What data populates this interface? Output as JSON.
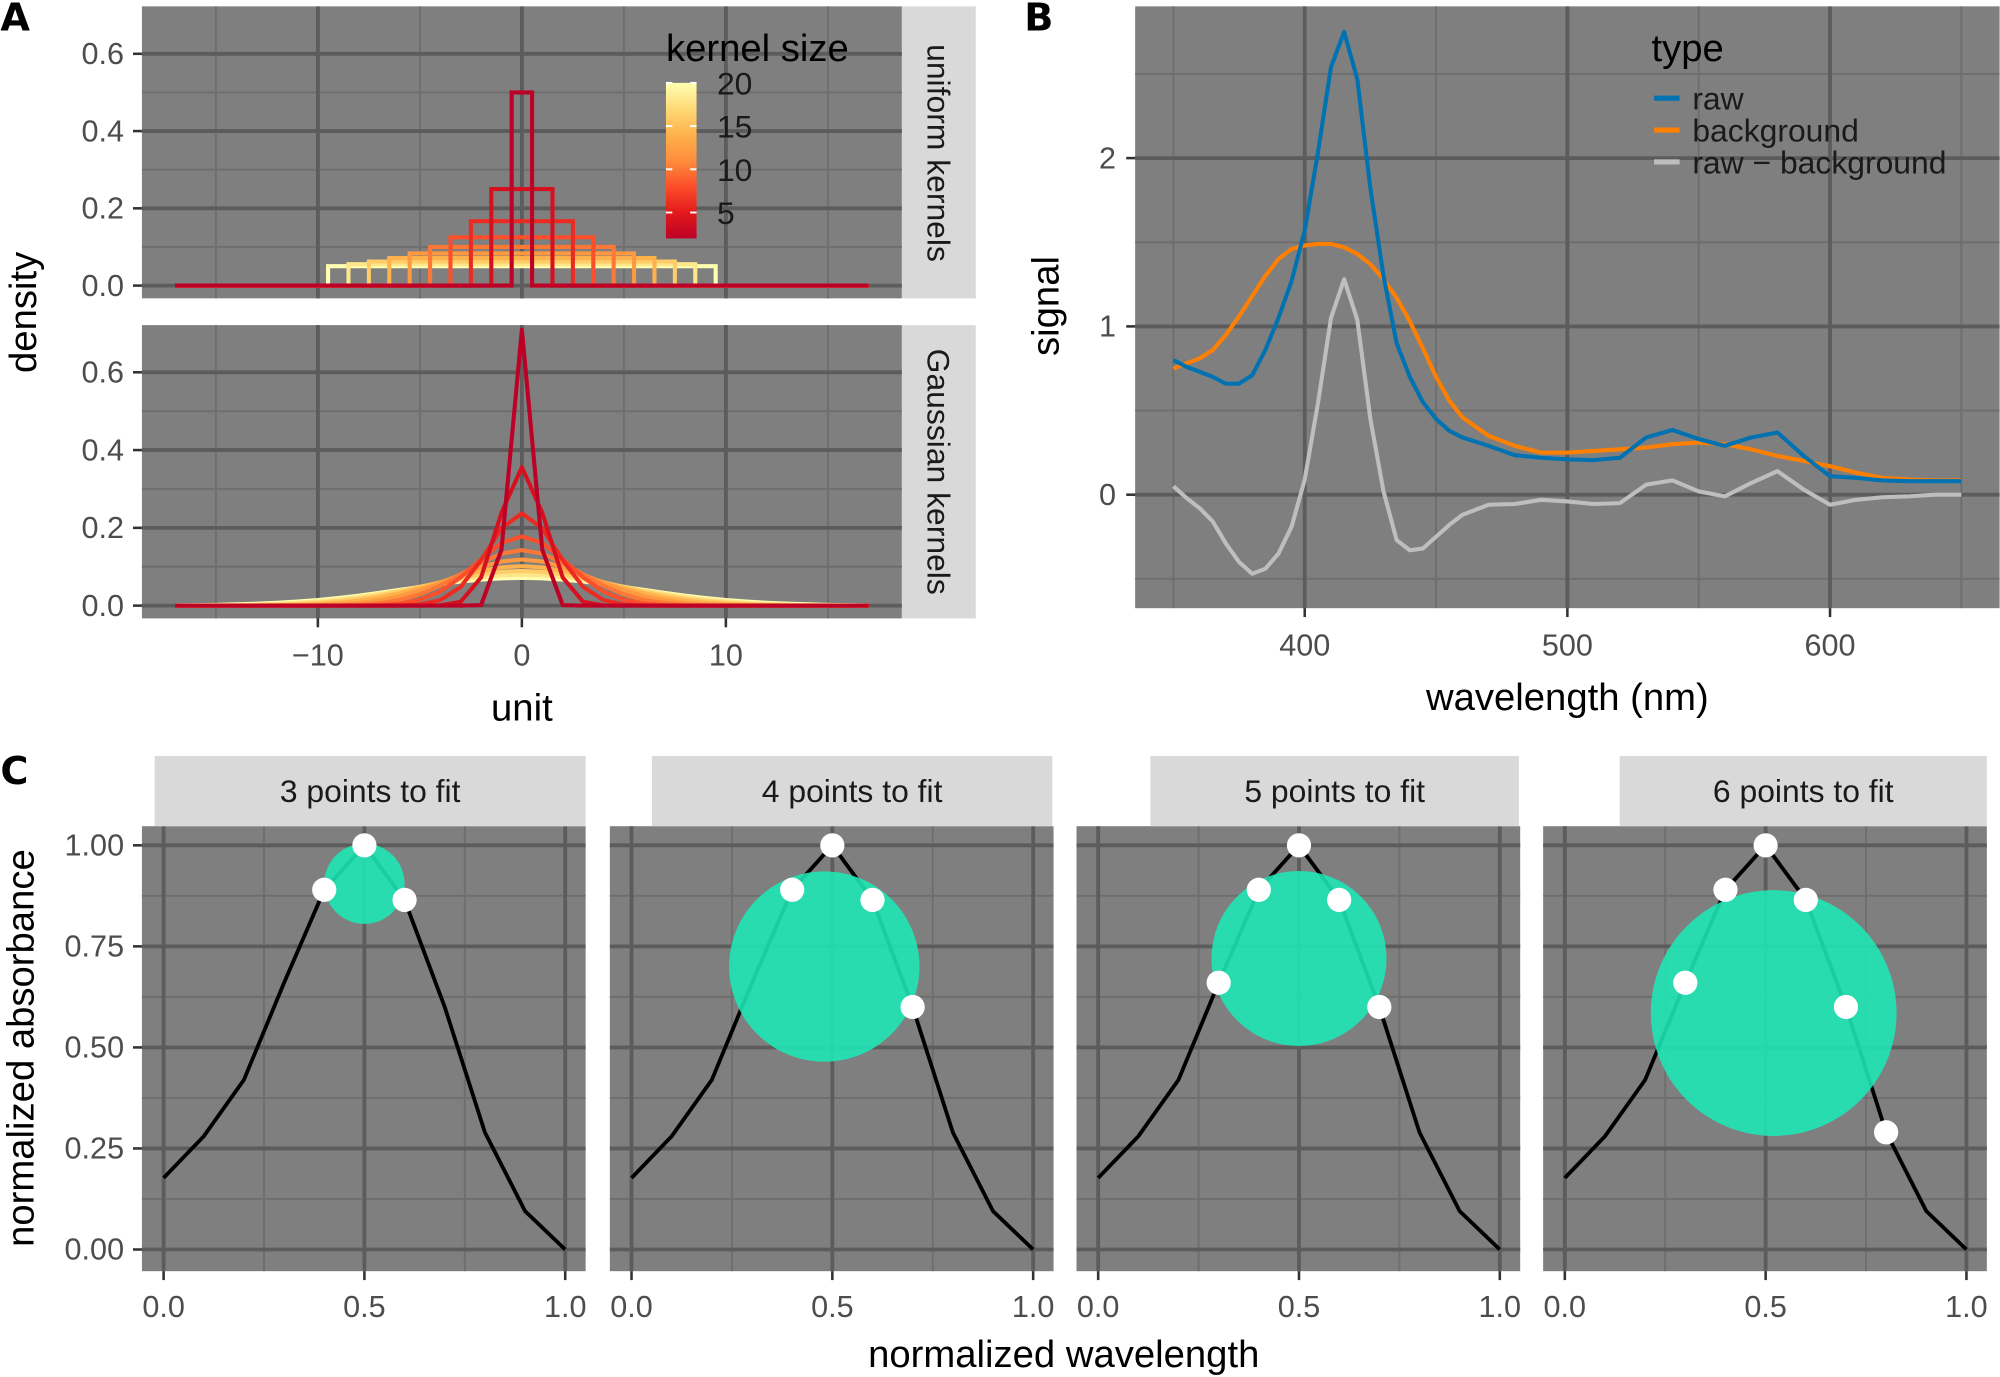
{
  "panel_labels": {
    "a": "A",
    "b": "B",
    "c": "C"
  },
  "colors": {
    "panel_bg": "#7f7f7f",
    "grid": "#5c5c5c",
    "strip_bg": "#d9d9d9",
    "kernel_gradient": [
      "#bd0026",
      "#e31a1c",
      "#fc4e2a",
      "#fd8d3c",
      "#feb24c",
      "#fed976",
      "#ffffb2"
    ],
    "raw": "#0072b2",
    "background": "#ff8000",
    "raw_minus_background": "#bebebe",
    "fit_circle": "#1de9b6",
    "fit_point": "#ffffff",
    "curve": "#000000"
  },
  "chart_data": [
    {
      "id": "A",
      "type": "line",
      "xlabel": "unit",
      "ylabel": "density",
      "xlim": [
        -18.5,
        18.5
      ],
      "x_ticks": [
        -10,
        0,
        10
      ],
      "x_tick_labels": [
        "−10",
        "0",
        "10"
      ],
      "y_ticks": [
        0.0,
        0.2,
        0.4,
        0.6
      ],
      "y_tick_labels": [
        "0.0",
        "0.2",
        "0.4",
        "0.6"
      ],
      "facets": [
        "uniform kernels",
        "Gaussian kernels"
      ],
      "kernel_sizes": [
        2,
        4,
        6,
        8,
        10,
        12,
        14,
        16,
        18,
        20
      ],
      "support": [
        -17,
        17
      ],
      "legend": {
        "title": "kernel size",
        "breaks": [
          5,
          10,
          15,
          20
        ],
        "labels": [
          "5",
          "10",
          "15",
          "20"
        ],
        "range": [
          2,
          20
        ],
        "placement": "top-right"
      },
      "grid": true
    },
    {
      "id": "B",
      "type": "line",
      "xlabel": "wavelength (nm)",
      "ylabel": "signal",
      "xlim": [
        338,
        667
      ],
      "ylim": [
        -0.68,
        2.9
      ],
      "x_ticks": [
        400,
        500,
        600
      ],
      "x_tick_labels": [
        "400",
        "500",
        "600"
      ],
      "y_ticks": [
        0,
        1,
        2
      ],
      "y_tick_labels": [
        "0",
        "1",
        "2"
      ],
      "legend": {
        "title": "type",
        "placement": "top-right"
      },
      "grid": true,
      "x": [
        350,
        355,
        360,
        365,
        370,
        375,
        380,
        385,
        390,
        395,
        400,
        405,
        410,
        415,
        420,
        425,
        430,
        435,
        440,
        445,
        450,
        455,
        460,
        470,
        480,
        490,
        500,
        510,
        520,
        530,
        540,
        550,
        560,
        570,
        580,
        590,
        600,
        610,
        620,
        630,
        640,
        650
      ],
      "series": [
        {
          "name": "raw",
          "values": [
            0.8,
            0.76,
            0.73,
            0.7,
            0.66,
            0.66,
            0.71,
            0.86,
            1.05,
            1.27,
            1.57,
            2.03,
            2.54,
            2.75,
            2.47,
            1.82,
            1.3,
            0.9,
            0.7,
            0.55,
            0.45,
            0.38,
            0.34,
            0.29,
            0.235,
            0.22,
            0.21,
            0.205,
            0.22,
            0.34,
            0.385,
            0.33,
            0.29,
            0.34,
            0.37,
            0.23,
            0.11,
            0.1,
            0.085,
            0.08,
            0.08,
            0.08
          ]
        },
        {
          "name": "background",
          "values": [
            0.75,
            0.78,
            0.81,
            0.86,
            0.95,
            1.06,
            1.18,
            1.3,
            1.4,
            1.46,
            1.48,
            1.49,
            1.49,
            1.47,
            1.43,
            1.37,
            1.28,
            1.17,
            1.03,
            0.87,
            0.7,
            0.56,
            0.46,
            0.35,
            0.29,
            0.25,
            0.25,
            0.26,
            0.27,
            0.28,
            0.3,
            0.31,
            0.3,
            0.27,
            0.23,
            0.2,
            0.17,
            0.13,
            0.1,
            0.09,
            0.085,
            0.085
          ]
        },
        {
          "name": "raw − background",
          "values": [
            0.05,
            -0.02,
            -0.08,
            -0.16,
            -0.29,
            -0.4,
            -0.47,
            -0.44,
            -0.35,
            -0.19,
            0.09,
            0.54,
            1.05,
            1.28,
            1.04,
            0.45,
            0.02,
            -0.27,
            -0.33,
            -0.32,
            -0.25,
            -0.18,
            -0.12,
            -0.06,
            -0.055,
            -0.03,
            -0.04,
            -0.055,
            -0.05,
            0.06,
            0.085,
            0.02,
            -0.01,
            0.07,
            0.14,
            0.03,
            -0.06,
            -0.03,
            -0.015,
            -0.01,
            0.0,
            0.0
          ]
        }
      ]
    },
    {
      "id": "C",
      "type": "line",
      "xlabel": "normalized wavelength",
      "ylabel": "normalized absorbance",
      "xlim": [
        -0.05,
        1.05
      ],
      "ylim": [
        -0.05,
        1.05
      ],
      "x_ticks": [
        0,
        0.5,
        1
      ],
      "x_tick_labels": [
        "0.0",
        "0.5",
        "1.0"
      ],
      "y_ticks": [
        0,
        0.25,
        0.5,
        0.75,
        1
      ],
      "y_tick_labels": [
        "0.00",
        "0.25",
        "0.50",
        "0.75",
        "1.00"
      ],
      "grid": true,
      "x": [
        0,
        0.1,
        0.2,
        0.3,
        0.4,
        0.5,
        0.6,
        0.7,
        0.8,
        0.9,
        1.0
      ],
      "y": [
        0.177,
        0.28,
        0.42,
        0.66,
        0.89,
        1.0,
        0.865,
        0.6,
        0.29,
        0.095,
        0.0
      ],
      "facets": [
        {
          "label": "3 points to fit",
          "fit_x": [
            0.4,
            0.5,
            0.6
          ],
          "circle": {
            "cx": 0.5,
            "cy": 0.905,
            "r": 0.1
          }
        },
        {
          "label": "4 points to fit",
          "fit_x": [
            0.4,
            0.5,
            0.6,
            0.7
          ],
          "circle": {
            "cx": 0.48,
            "cy": 0.7,
            "r": 0.237
          }
        },
        {
          "label": "5 points to fit",
          "fit_x": [
            0.3,
            0.4,
            0.5,
            0.6,
            0.7
          ],
          "circle": {
            "cx": 0.5,
            "cy": 0.72,
            "r": 0.218
          }
        },
        {
          "label": "6 points to fit",
          "fit_x": [
            0.3,
            0.4,
            0.5,
            0.6,
            0.7,
            0.8
          ],
          "circle": {
            "cx": 0.52,
            "cy": 0.585,
            "r": 0.306
          }
        }
      ]
    }
  ]
}
